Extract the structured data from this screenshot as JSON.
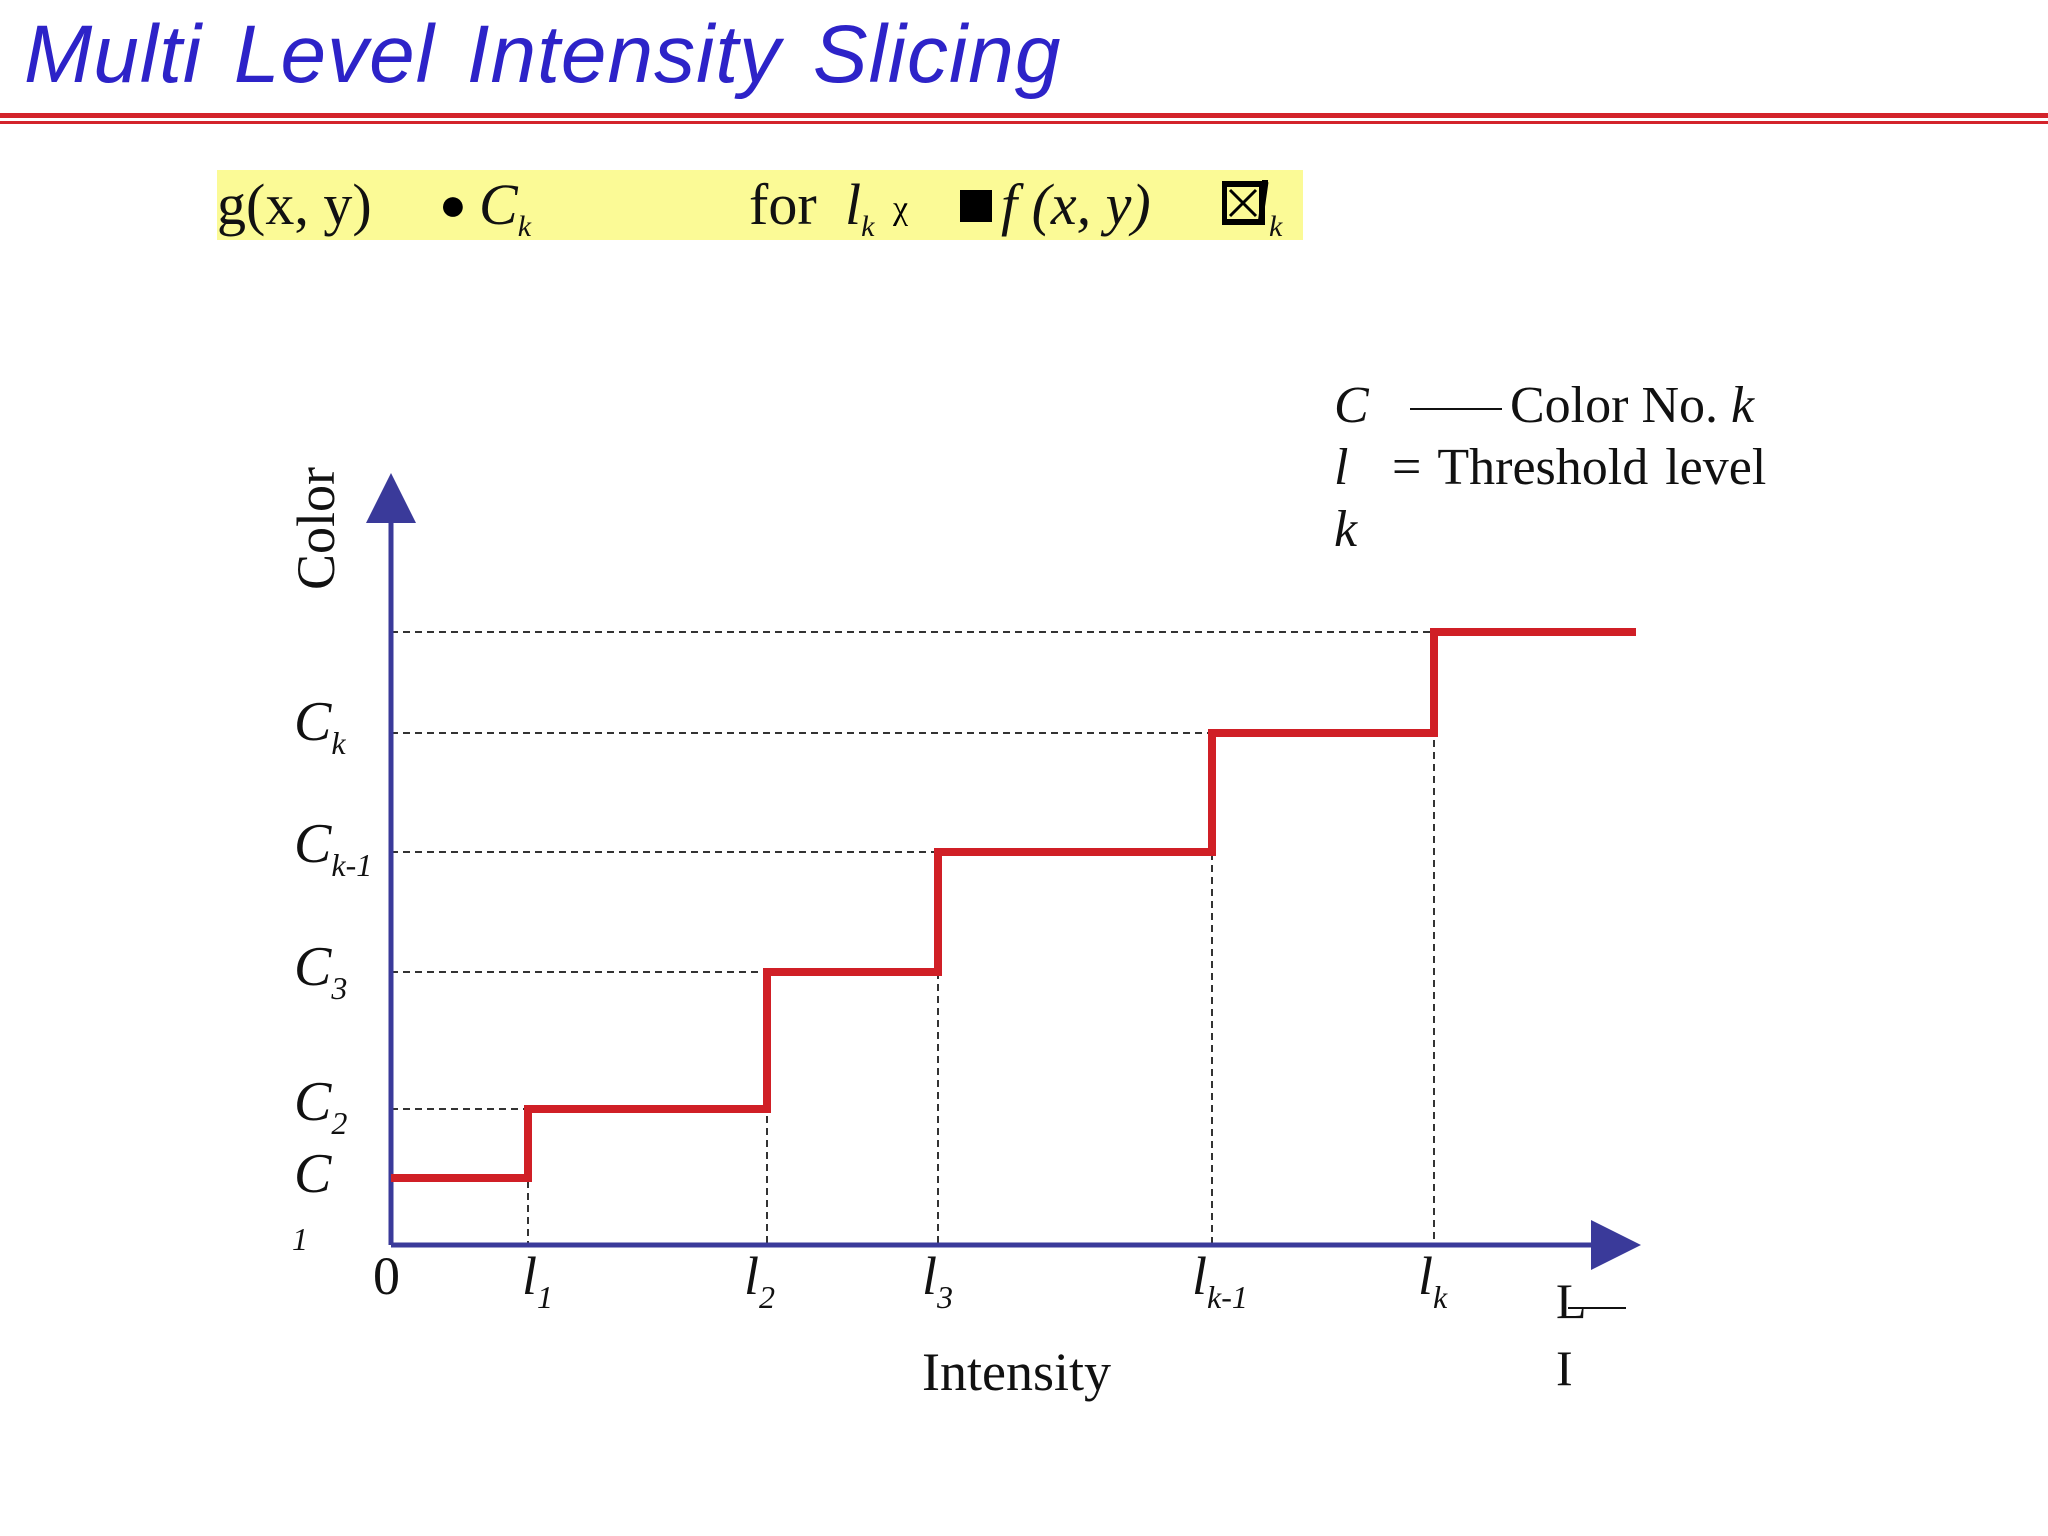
{
  "slide": {
    "title": "Multi Level Intensity Slicing"
  },
  "formula": {
    "g_xy": "g(x, y)",
    "C": "C",
    "C_sub": "k",
    "for": "for",
    "l1": "l",
    "l1_sub": "k",
    "garble1": "χ",
    "f_xy": "f (x, y)",
    "l2_sub": "k",
    "bg_color": "#fbfa96"
  },
  "legend": {
    "line1_sym": "C",
    "line1_text": "Color No.",
    "line1_k": "k",
    "line2_sym": "l",
    "line2_text": "= Threshold  level",
    "line3_sym": "k"
  },
  "chart_data": {
    "type": "line",
    "step": true,
    "xlabel": "Intensity",
    "ylabel": "Color",
    "x_tick_labels": [
      {
        "base": "0",
        "sub": ""
      },
      {
        "base": "l",
        "sub": "1"
      },
      {
        "base": "l",
        "sub": "2"
      },
      {
        "base": "l",
        "sub": "3"
      },
      {
        "base": "l",
        "sub": "k-1"
      },
      {
        "base": "l",
        "sub": "k"
      }
    ],
    "x_end_label": {
      "base": "L",
      "second": "I"
    },
    "y_tick_labels": [
      {
        "base": "C",
        "sub": "1"
      },
      {
        "base": "C",
        "sub": "2"
      },
      {
        "base": "C",
        "sub": "3"
      },
      {
        "base": "C",
        "sub": "k-1"
      },
      {
        "base": "C",
        "sub": "k"
      }
    ],
    "x_thresholds": [
      1,
      2,
      3,
      4,
      5
    ],
    "x_max": 6,
    "levels": [
      1,
      2,
      3,
      4,
      5,
      6
    ],
    "y_max": 6,
    "line_color": "#d01f26",
    "axis_color": "#3a3a9a",
    "grid_style": "dashed"
  }
}
